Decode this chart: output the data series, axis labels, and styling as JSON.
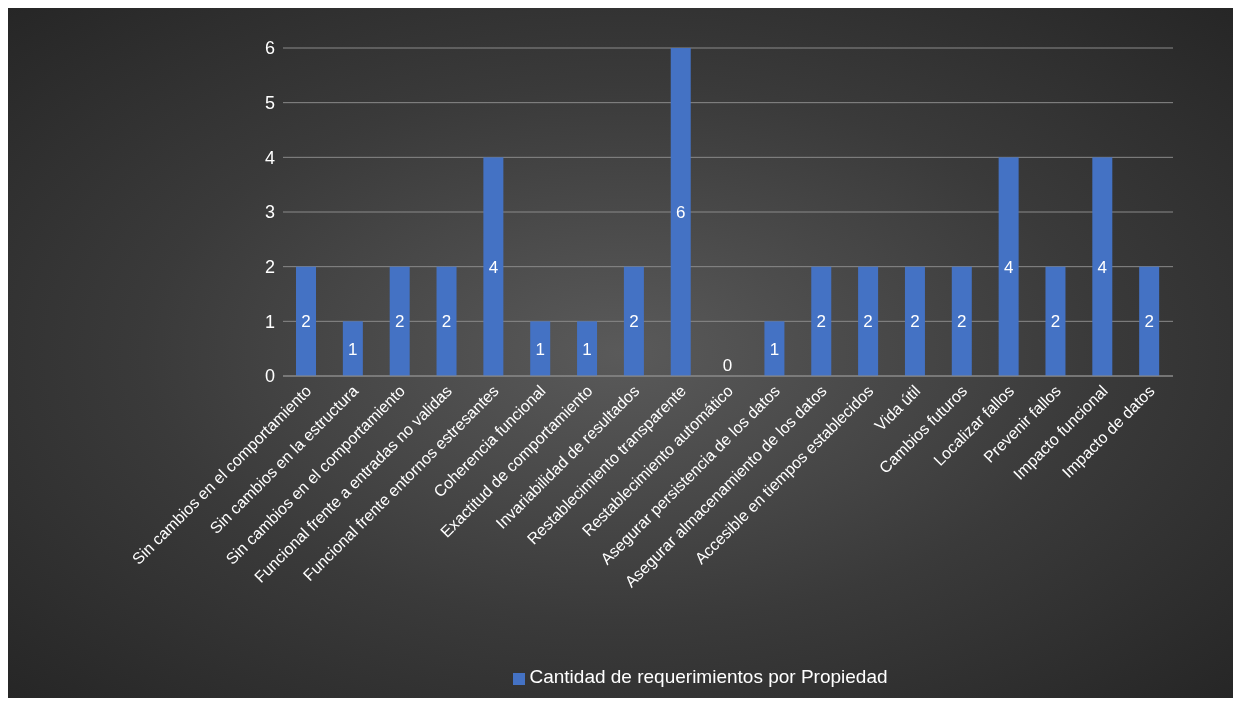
{
  "chart_data": {
    "type": "bar",
    "categories": [
      "Sin cambios en el comportamiento",
      "Sin cambios en la estructura",
      "Sin cambios en el comportamiento",
      "Funcional frente a entradas no validas",
      "Funcional frente entornos estresantes",
      "Coherencia funcional",
      "Exactitud de comportamiento",
      "Invariabilidad de resultados",
      "Restablecimiento transparente",
      "Restablecimiento automático",
      "Asegurar persistencia de los datos",
      "Asegurar almacenamiento de los datos",
      "Accesible en tiempos establecidos",
      "Vida útil",
      "Cambios futuros",
      "Localizar fallos",
      "Prevenir fallos",
      "Impacto funcional",
      "Impacto de datos"
    ],
    "series": [
      {
        "name": "Cantidad de requerimientos por Propiedad",
        "color": "#4472c4",
        "values": [
          2,
          1,
          2,
          2,
          4,
          1,
          1,
          2,
          6,
          0,
          1,
          2,
          2,
          2,
          2,
          4,
          2,
          4,
          2
        ]
      }
    ],
    "ylim": [
      0,
      6
    ],
    "yticks": [
      0,
      1,
      2,
      3,
      4,
      5,
      6
    ],
    "grid": "y",
    "legend": "bottom",
    "data_labels": true
  }
}
